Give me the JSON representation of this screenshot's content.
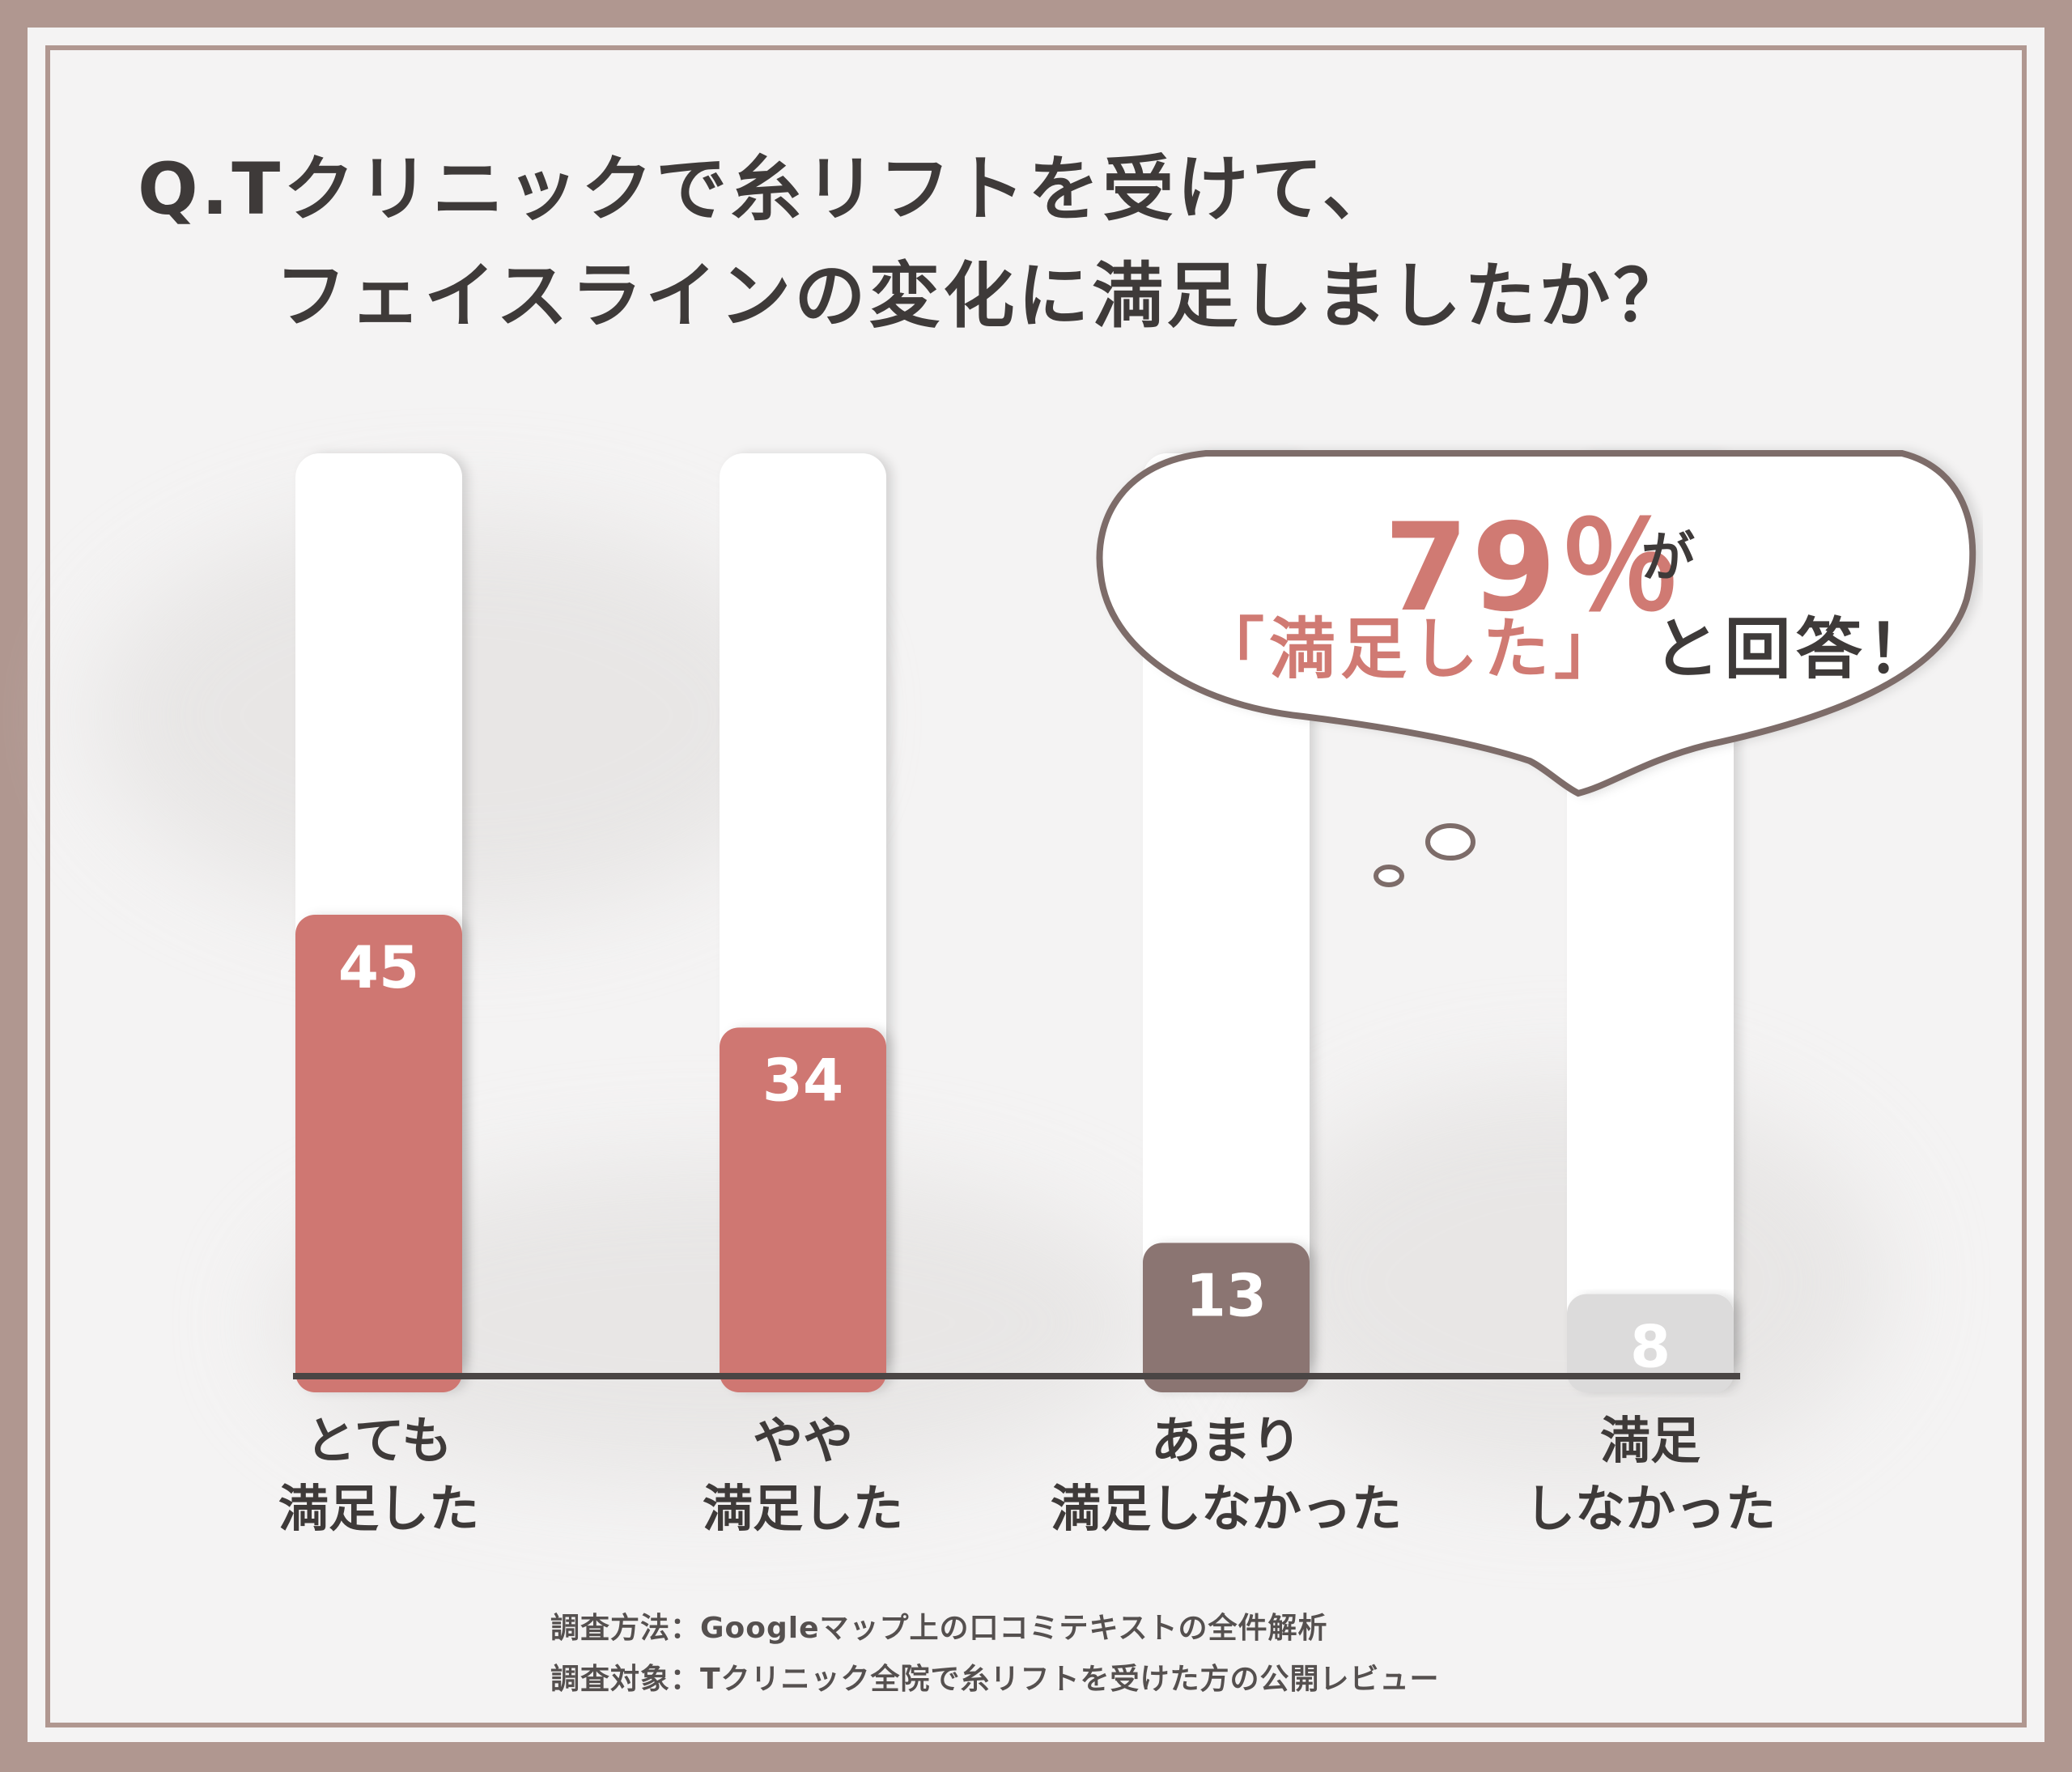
{
  "title": {
    "line1": "Q.Tクリニックで糸リフトを受けて、",
    "line2": "フェイスラインの変化に満足しましたか？"
  },
  "callout": {
    "percent": "79％",
    "suffix": "が",
    "quote": "「満足した」",
    "answer": "と回答！"
  },
  "notes": {
    "method": "調査方法：Googleマップ上の口コミテキストの全件解析",
    "target": "調査対象：Tクリニック全院で糸リフトを受けた方の公開レビュー"
  },
  "colors": {
    "very_satisfied": "#cf7772",
    "somewhat_satisfied": "#cf7772",
    "not_very": "#8b7572",
    "not_satisfied": "#dcdbdb",
    "frame": "#b09790"
  },
  "chart_data": {
    "type": "bar",
    "categories": [
      "とても\n満足した",
      "やや\n満足した",
      "あまり\n満足しなかった",
      "満足\nしなかった"
    ],
    "values": [
      45,
      34,
      13,
      8
    ],
    "ylim": [
      0,
      90
    ],
    "grid": false,
    "data_labels": true
  }
}
